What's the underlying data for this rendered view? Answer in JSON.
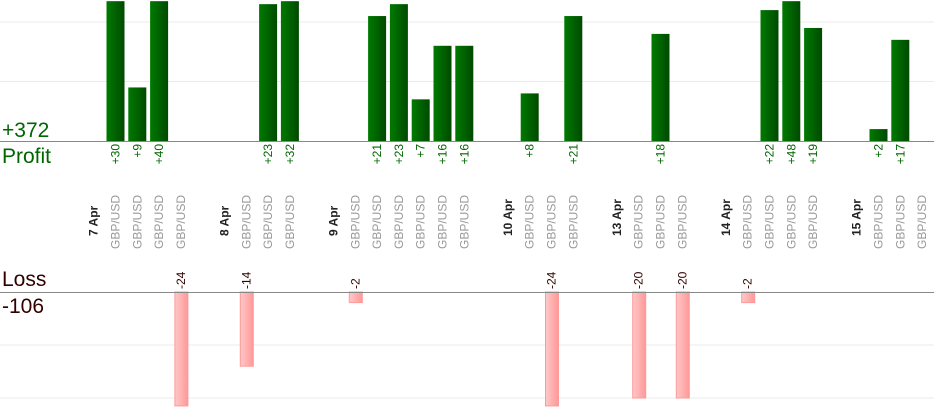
{
  "summary": {
    "profit_total": "+372",
    "profit_label": "Profit",
    "loss_label": "Loss",
    "loss_total": "-106"
  },
  "colors": {
    "profit": "#006600",
    "profit_dark": "#004400",
    "loss": "#ffb0b0",
    "loss_text": "#330000",
    "pair_text": "#999999"
  },
  "chart_data": {
    "type": "bar",
    "profit_axis": {
      "ylim": [
        0,
        23.5
      ],
      "grid_step": 10
    },
    "loss_axis": {
      "ylim": [
        -21.5,
        0
      ],
      "grid_step": 10
    },
    "grid": true,
    "groups": [
      {
        "date": "7 Apr",
        "trades": [
          {
            "pair": "GBP/USD",
            "value": 30
          },
          {
            "pair": "GBP/USD",
            "value": 9
          },
          {
            "pair": "GBP/USD",
            "value": 40
          },
          {
            "pair": "GBP/USD",
            "value": -24
          }
        ]
      },
      {
        "date": "8 Apr",
        "trades": [
          {
            "pair": "GBP/USD",
            "value": -14
          },
          {
            "pair": "GBP/USD",
            "value": 23
          },
          {
            "pair": "GBP/USD",
            "value": 32
          }
        ]
      },
      {
        "date": "9 Apr",
        "trades": [
          {
            "pair": "GBP/USD",
            "value": -2
          },
          {
            "pair": "GBP/USD",
            "value": 21
          },
          {
            "pair": "GBP/USD",
            "value": 23
          },
          {
            "pair": "GBP/USD",
            "value": 7
          },
          {
            "pair": "GBP/USD",
            "value": 16
          },
          {
            "pair": "GBP/USD",
            "value": 16
          }
        ]
      },
      {
        "date": "10 Apr",
        "trades": [
          {
            "pair": "GBP/USD",
            "value": 8
          },
          {
            "pair": "GBP/USD",
            "value": -24
          },
          {
            "pair": "GBP/USD",
            "value": 21
          }
        ]
      },
      {
        "date": "13 Apr",
        "trades": [
          {
            "pair": "GBP/USD",
            "value": -20
          },
          {
            "pair": "GBP/USD",
            "value": 18
          },
          {
            "pair": "GBP/USD",
            "value": -20
          }
        ]
      },
      {
        "date": "14 Apr",
        "trades": [
          {
            "pair": "GBP/USD",
            "value": -2
          },
          {
            "pair": "GBP/USD",
            "value": 22
          },
          {
            "pair": "GBP/USD",
            "value": 48
          },
          {
            "pair": "GBP/USD",
            "value": 19
          }
        ]
      },
      {
        "date": "15 Apr",
        "trades": [
          {
            "pair": "GBP/USD",
            "value": 2
          },
          {
            "pair": "GBP/USD",
            "value": 17
          },
          {
            "pair": "GBP/USD",
            "value": null
          }
        ]
      }
    ]
  }
}
